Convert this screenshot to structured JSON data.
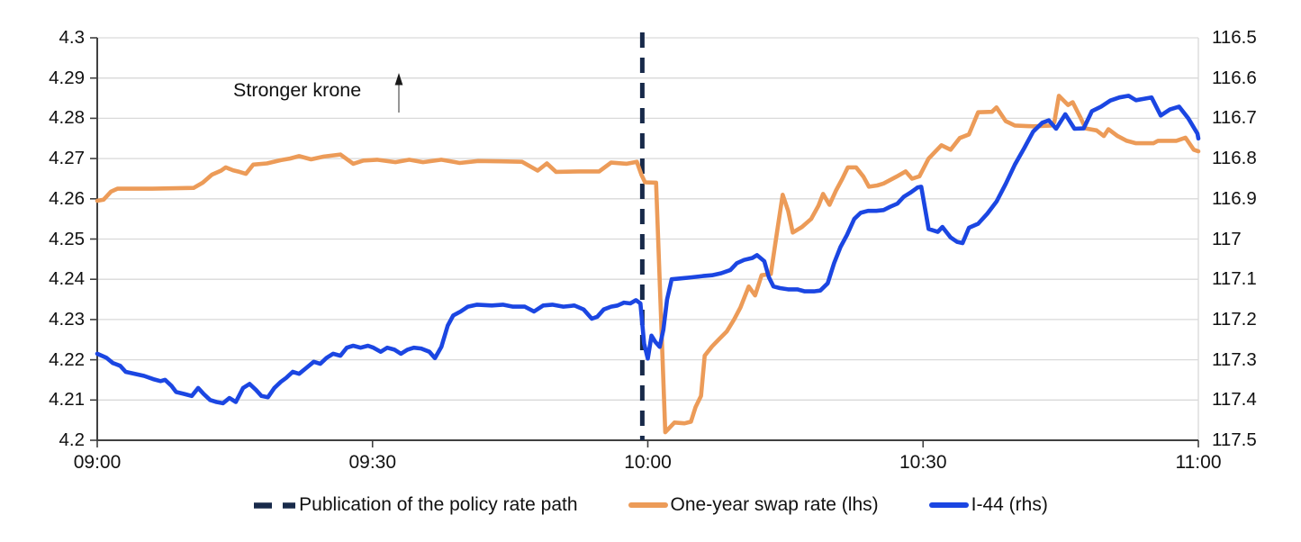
{
  "chart_data": {
    "type": "line",
    "title": "",
    "annotation": {
      "text": "Stronger krone",
      "arrow": "up"
    },
    "x_axis": {
      "range_minutes": [
        0,
        120
      ],
      "tick_minutes": [
        0,
        30,
        60,
        90,
        120
      ],
      "tick_labels": [
        "09:00",
        "09:30",
        "10:00",
        "10:30",
        "11:00"
      ]
    },
    "left_axis": {
      "min": 4.2,
      "max": 4.3,
      "tick_values": [
        4.3,
        4.29,
        4.28,
        4.27,
        4.26,
        4.25,
        4.24,
        4.23,
        4.22,
        4.21,
        4.2
      ],
      "tick_labels": [
        "4.3",
        "4.29",
        "4.28",
        "4.27",
        "4.26",
        "4.25",
        "4.24",
        "4.23",
        "4.22",
        "4.21",
        "4.2"
      ]
    },
    "right_axis": {
      "min": 116.5,
      "max": 117.5,
      "inverted": true,
      "tick_values": [
        116.5,
        116.6,
        116.7,
        116.8,
        116.9,
        117,
        117.1,
        117.2,
        117.3,
        117.4,
        117.5
      ],
      "tick_labels": [
        "116.5",
        "116.6",
        "116.7",
        "116.8",
        "116.9",
        "117",
        "117.1",
        "117.2",
        "117.3",
        "117.4",
        "117.5"
      ]
    },
    "event_line": {
      "time": "10:00",
      "minute": 59.4,
      "label": "Publication of the policy rate path",
      "color": "#182A4A",
      "style": "dashed"
    },
    "colors": {
      "grid": "#D9D9D9",
      "axis": "#404040",
      "text": "#111111",
      "arrow_stem": "#8A8A8A",
      "arrow_head": "#1A1A1A"
    },
    "legend_position": "bottom-center",
    "grid": true,
    "series": [
      {
        "name": "One-year swap rate (lhs)",
        "axis": "left",
        "color": "#EC9B58",
        "points": [
          [
            0,
            4.2595
          ],
          [
            0.7,
            4.2598
          ],
          [
            1.5,
            4.2618
          ],
          [
            2.2,
            4.2625
          ],
          [
            6,
            4.2625
          ],
          [
            10.5,
            4.2627
          ],
          [
            11.5,
            4.264
          ],
          [
            12.5,
            4.266
          ],
          [
            13.5,
            4.267
          ],
          [
            14,
            4.2678
          ],
          [
            14.8,
            4.2671
          ],
          [
            15.5,
            4.2667
          ],
          [
            16.2,
            4.2662
          ],
          [
            17,
            4.2685
          ],
          [
            18.5,
            4.2688
          ],
          [
            20,
            4.2696
          ],
          [
            21,
            4.27
          ],
          [
            22,
            4.2706
          ],
          [
            23.3,
            4.2698
          ],
          [
            24.7,
            4.2705
          ],
          [
            26.5,
            4.271
          ],
          [
            27.9,
            4.2687
          ],
          [
            29,
            4.2695
          ],
          [
            30.5,
            4.2697
          ],
          [
            32.5,
            4.2691
          ],
          [
            34,
            4.2697
          ],
          [
            35.5,
            4.2691
          ],
          [
            37.5,
            4.2697
          ],
          [
            39.5,
            4.2689
          ],
          [
            41.5,
            4.2694
          ],
          [
            44,
            4.2693
          ],
          [
            46.3,
            4.2692
          ],
          [
            48,
            4.267
          ],
          [
            49,
            4.2688
          ],
          [
            50,
            4.2667
          ],
          [
            52.5,
            4.2668
          ],
          [
            54.7,
            4.2668
          ],
          [
            56,
            4.269
          ],
          [
            57.7,
            4.2687
          ],
          [
            58.8,
            4.2692
          ],
          [
            59.3,
            4.266
          ],
          [
            59.7,
            4.2641
          ],
          [
            60.9,
            4.264
          ],
          [
            61.9,
            4.202
          ],
          [
            62.9,
            4.2044
          ],
          [
            64,
            4.2042
          ],
          [
            64.7,
            4.2046
          ],
          [
            65.2,
            4.2082
          ],
          [
            65.8,
            4.211
          ],
          [
            66.2,
            4.221
          ],
          [
            67,
            4.2233
          ],
          [
            67.8,
            4.2252
          ],
          [
            68.6,
            4.227
          ],
          [
            69.4,
            4.23
          ],
          [
            70.1,
            4.233
          ],
          [
            71,
            4.2382
          ],
          [
            71.7,
            4.236
          ],
          [
            72.4,
            4.241
          ],
          [
            73.4,
            4.2413
          ],
          [
            74.1,
            4.252
          ],
          [
            74.7,
            4.261
          ],
          [
            75.3,
            4.257
          ],
          [
            75.8,
            4.2516
          ],
          [
            76.8,
            4.253
          ],
          [
            77.8,
            4.255
          ],
          [
            78.6,
            4.2583
          ],
          [
            79.1,
            4.2612
          ],
          [
            79.8,
            4.2585
          ],
          [
            80.5,
            4.262
          ],
          [
            81.2,
            4.265
          ],
          [
            81.8,
            4.2678
          ],
          [
            82.7,
            4.2678
          ],
          [
            83.5,
            4.2655
          ],
          [
            84.1,
            4.263
          ],
          [
            85,
            4.2633
          ],
          [
            85.7,
            4.2638
          ],
          [
            87.1,
            4.2655
          ],
          [
            88.1,
            4.2668
          ],
          [
            88.8,
            4.265
          ],
          [
            89.6,
            4.2656
          ],
          [
            90.6,
            4.27
          ],
          [
            92,
            4.2733
          ],
          [
            93,
            4.2722
          ],
          [
            94,
            4.2751
          ],
          [
            95,
            4.276
          ],
          [
            96,
            4.2815
          ],
          [
            97.5,
            4.2816
          ],
          [
            98,
            4.2827
          ],
          [
            99,
            4.2793
          ],
          [
            100,
            4.2782
          ],
          [
            102,
            4.278
          ],
          [
            104,
            4.2782
          ],
          [
            104.3,
            4.279
          ],
          [
            104.8,
            4.2856
          ],
          [
            105.8,
            4.2833
          ],
          [
            106.3,
            4.284
          ],
          [
            107.2,
            4.28
          ],
          [
            107.7,
            4.2775
          ],
          [
            108.9,
            4.277
          ],
          [
            109.7,
            4.2756
          ],
          [
            110.2,
            4.2773
          ],
          [
            111.2,
            4.2756
          ],
          [
            112.2,
            4.2744
          ],
          [
            113.2,
            4.2738
          ],
          [
            115.1,
            4.2738
          ],
          [
            115.6,
            4.2744
          ],
          [
            117.6,
            4.2744
          ],
          [
            118.6,
            4.2752
          ],
          [
            119.5,
            4.2722
          ],
          [
            120,
            4.2718
          ]
        ]
      },
      {
        "name": "I-44 (rhs)",
        "axis": "right",
        "color": "#1B46E2",
        "points": [
          [
            0,
            117.285
          ],
          [
            1,
            117.295
          ],
          [
            1.7,
            117.308
          ],
          [
            2.5,
            117.315
          ],
          [
            3.1,
            117.33
          ],
          [
            4.1,
            117.335
          ],
          [
            5.1,
            117.34
          ],
          [
            6.1,
            117.348
          ],
          [
            6.9,
            117.353
          ],
          [
            7.4,
            117.35
          ],
          [
            8.1,
            117.365
          ],
          [
            8.6,
            117.38
          ],
          [
            9.5,
            117.385
          ],
          [
            10.3,
            117.39
          ],
          [
            11,
            117.37
          ],
          [
            11.6,
            117.385
          ],
          [
            12.3,
            117.4
          ],
          [
            13,
            117.405
          ],
          [
            13.7,
            117.408
          ],
          [
            14.4,
            117.395
          ],
          [
            15.1,
            117.405
          ],
          [
            15.9,
            117.37
          ],
          [
            16.6,
            117.36
          ],
          [
            17.3,
            117.375
          ],
          [
            17.9,
            117.39
          ],
          [
            18.6,
            117.393
          ],
          [
            19.3,
            117.37
          ],
          [
            20,
            117.355
          ],
          [
            20.6,
            117.345
          ],
          [
            21.3,
            117.33
          ],
          [
            22,
            117.335
          ],
          [
            22.8,
            117.32
          ],
          [
            23.6,
            117.305
          ],
          [
            24.3,
            117.31
          ],
          [
            25,
            117.295
          ],
          [
            25.7,
            117.285
          ],
          [
            26.5,
            117.29
          ],
          [
            27.2,
            117.27
          ],
          [
            27.9,
            117.265
          ],
          [
            28.7,
            117.27
          ],
          [
            29.5,
            117.265
          ],
          [
            30.1,
            117.27
          ],
          [
            30.9,
            117.28
          ],
          [
            31.6,
            117.27
          ],
          [
            32.4,
            117.275
          ],
          [
            33.1,
            117.285
          ],
          [
            33.8,
            117.275
          ],
          [
            34.5,
            117.27
          ],
          [
            35.3,
            117.272
          ],
          [
            36.2,
            117.28
          ],
          [
            36.8,
            117.296
          ],
          [
            37.5,
            117.268
          ],
          [
            38.2,
            117.215
          ],
          [
            38.8,
            117.19
          ],
          [
            39.6,
            117.18
          ],
          [
            40.4,
            117.168
          ],
          [
            41.4,
            117.163
          ],
          [
            43,
            117.165
          ],
          [
            44.2,
            117.163
          ],
          [
            45.3,
            117.168
          ],
          [
            46.6,
            117.168
          ],
          [
            47.6,
            117.18
          ],
          [
            48.6,
            117.165
          ],
          [
            49.6,
            117.163
          ],
          [
            50.8,
            117.168
          ],
          [
            52,
            117.165
          ],
          [
            53,
            117.175
          ],
          [
            53.9,
            117.198
          ],
          [
            54.5,
            117.193
          ],
          [
            55.2,
            117.175
          ],
          [
            56,
            117.168
          ],
          [
            56.7,
            117.165
          ],
          [
            57.4,
            117.158
          ],
          [
            58.1,
            117.16
          ],
          [
            58.7,
            117.152
          ],
          [
            59.2,
            117.16
          ],
          [
            59.6,
            117.26
          ],
          [
            60,
            117.297
          ],
          [
            60.4,
            117.24
          ],
          [
            60.8,
            117.255
          ],
          [
            61.3,
            117.268
          ],
          [
            61.7,
            117.225
          ],
          [
            62.1,
            117.15
          ],
          [
            62.6,
            117.1
          ],
          [
            63.5,
            117.098
          ],
          [
            64.8,
            117.095
          ],
          [
            66,
            117.092
          ],
          [
            67,
            117.09
          ],
          [
            68,
            117.085
          ],
          [
            69,
            117.077
          ],
          [
            69.7,
            117.06
          ],
          [
            70.5,
            117.052
          ],
          [
            71.4,
            117.047
          ],
          [
            71.9,
            117.04
          ],
          [
            72.7,
            117.055
          ],
          [
            73.2,
            117.095
          ],
          [
            73.7,
            117.118
          ],
          [
            74.4,
            117.122
          ],
          [
            75.3,
            117.125
          ],
          [
            76.3,
            117.125
          ],
          [
            77.1,
            117.13
          ],
          [
            78.1,
            117.13
          ],
          [
            78.8,
            117.128
          ],
          [
            79.6,
            117.11
          ],
          [
            80.3,
            117.06
          ],
          [
            81,
            117.02
          ],
          [
            81.7,
            116.99
          ],
          [
            82.5,
            116.95
          ],
          [
            83.2,
            116.935
          ],
          [
            84,
            116.93
          ],
          [
            84.9,
            116.93
          ],
          [
            85.7,
            116.928
          ],
          [
            86.4,
            116.92
          ],
          [
            87.2,
            116.912
          ],
          [
            87.9,
            116.895
          ],
          [
            88.6,
            116.885
          ],
          [
            89.4,
            116.872
          ],
          [
            89.8,
            116.87
          ],
          [
            90.6,
            116.975
          ],
          [
            91.6,
            116.982
          ],
          [
            92.1,
            116.97
          ],
          [
            93,
            116.996
          ],
          [
            93.7,
            117.007
          ],
          [
            94.3,
            117.01
          ],
          [
            95,
            116.972
          ],
          [
            96,
            116.962
          ],
          [
            97,
            116.937
          ],
          [
            98,
            116.907
          ],
          [
            99,
            116.863
          ],
          [
            100,
            116.815
          ],
          [
            101,
            116.775
          ],
          [
            102,
            116.733
          ],
          [
            103,
            116.711
          ],
          [
            103.7,
            116.705
          ],
          [
            104.5,
            116.726
          ],
          [
            105.5,
            116.69
          ],
          [
            106.5,
            116.726
          ],
          [
            107.5,
            116.725
          ],
          [
            108.4,
            116.682
          ],
          [
            109.4,
            116.671
          ],
          [
            110.4,
            116.656
          ],
          [
            111.4,
            116.648
          ],
          [
            112.4,
            116.644
          ],
          [
            113.2,
            116.655
          ],
          [
            114,
            116.652
          ],
          [
            114.9,
            116.648
          ],
          [
            115.9,
            116.693
          ],
          [
            116.9,
            116.678
          ],
          [
            117.9,
            116.671
          ],
          [
            118.9,
            116.7
          ],
          [
            119.9,
            116.738
          ],
          [
            120,
            116.75
          ]
        ]
      }
    ]
  }
}
